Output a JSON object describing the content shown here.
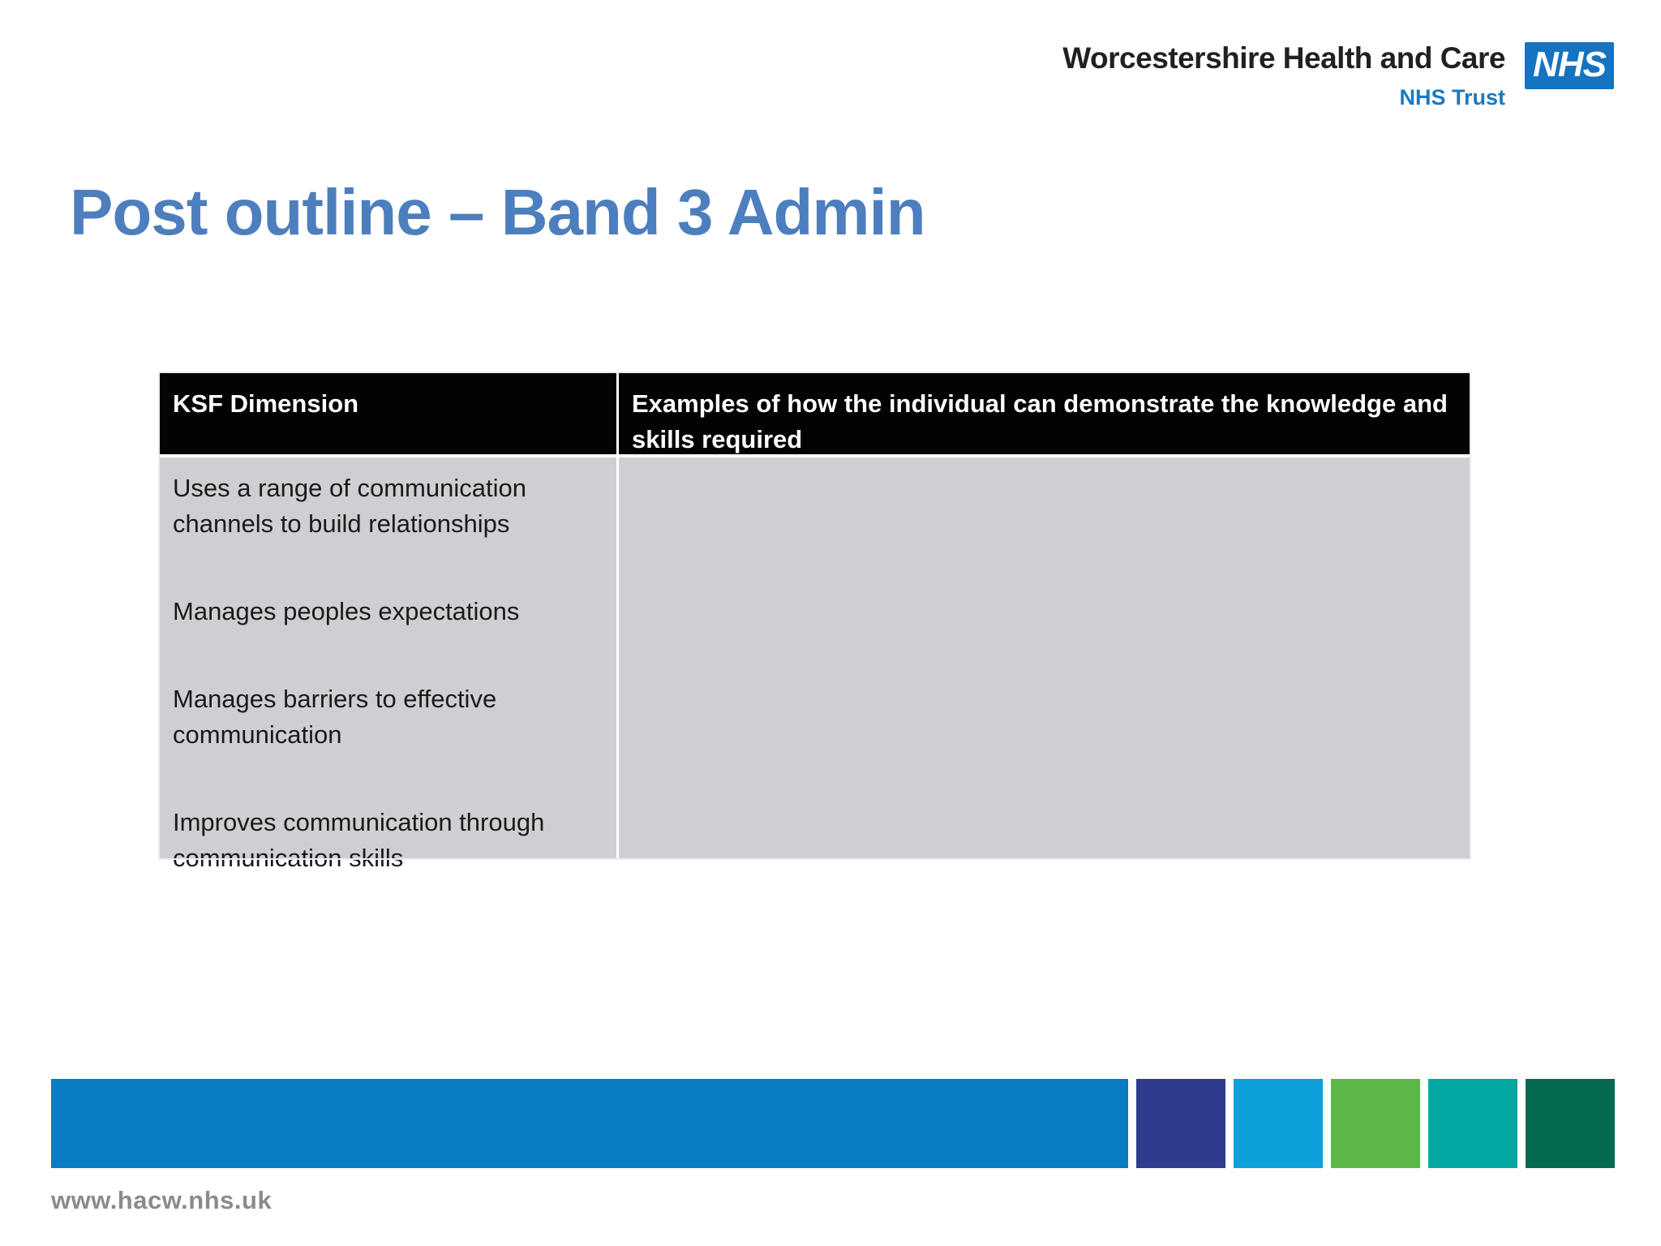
{
  "header": {
    "org_name": "Worcestershire Health and Care",
    "logo_text": "NHS",
    "trust_label": "NHS Trust"
  },
  "title": {
    "text": "Post outline – Band 3 Admin"
  },
  "table": {
    "header": [
      "KSF Dimension",
      "Examples of how the individual can demonstrate the knowledge and skills required"
    ],
    "ksf_items": [
      "Uses a range of communication channels to build relationships",
      "Manages peoples expectations",
      "Manages barriers to effective communication",
      "Improves communication through communication skills"
    ],
    "examples_cell": ""
  },
  "footer": {
    "url": "www.hacw.nhs.uk",
    "squares": [
      {
        "name": "indigo",
        "color": "#2f3c8e"
      },
      {
        "name": "light-blue",
        "color": "#0ea0db"
      },
      {
        "name": "green",
        "color": "#5cb947"
      },
      {
        "name": "teal",
        "color": "#04a8a2"
      },
      {
        "name": "dark-green",
        "color": "#066a50"
      }
    ]
  },
  "colors": {
    "title_blue": "#4d7ebd",
    "nhs_logo_blue": "#1673c1",
    "trust_text_blue": "#1b79c0",
    "org_name_text": "#231f20",
    "table_header_bg": "#030303",
    "table_header_text": "#ffffff",
    "table_body_bg": "#cfcfd3",
    "footer_bar_blue": "#097cc4",
    "footer_url_gray": "#8b8b8b"
  }
}
